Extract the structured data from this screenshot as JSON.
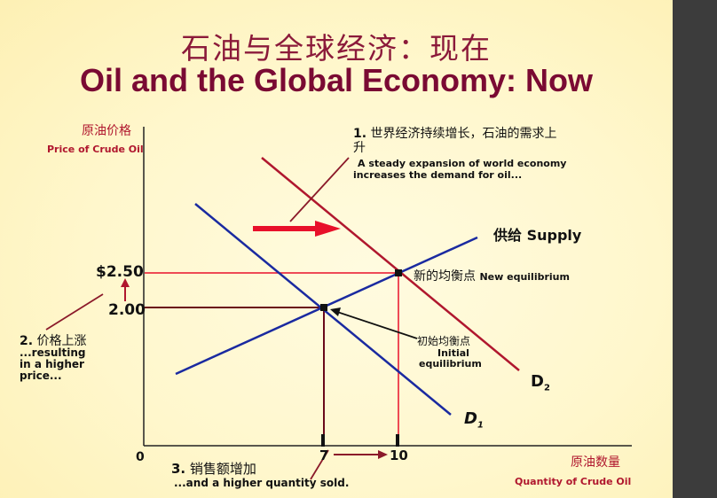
{
  "slide": {
    "title_cn": "石油与全球经济：现在",
    "title_en": "Oil and the Global Economy: Now"
  },
  "axes": {
    "y_label_cn": "原油价格",
    "y_label_en": "Price of Crude Oil",
    "x_label_cn": "原油数量",
    "x_label_en": "Quantity of Crude Oil",
    "origin": "0",
    "price_new": "$2.50",
    "price_old": "2.00",
    "qty_old": "7",
    "qty_new": "10"
  },
  "curves": {
    "supply_label": "供给 Supply",
    "demand1_main": "D",
    "demand1_sub": "1",
    "demand2_main": "D",
    "demand2_sub": "2"
  },
  "equilibria": {
    "new_cn": "新的均衡点",
    "new_en": "New equilibrium",
    "initial_cn": "初始均衡点",
    "initial_en_1": "Initial",
    "initial_en_2": "equilibrium"
  },
  "notes": {
    "note1_num": "1.",
    "note1_cn_line1": "世界经济持续增长，石油的需求上",
    "note1_cn_line2": "升",
    "note1_en_line1": "A steady expansion of world economy",
    "note1_en_line2": "increases the demand for oil...",
    "note2_num": "2.",
    "note2_cn": "价格上涨",
    "note2_en_1": "...resulting",
    "note2_en_2": "in a higher",
    "note2_en_3": "price...",
    "note3_num": "3.",
    "note3_cn": "销售额增加",
    "note3_en": "...and a higher quantity sold."
  },
  "colors": {
    "title": "#7a0a33",
    "demand_shift": "#b0172e",
    "supply": "#1a2aa0",
    "arrow": "#e8102a",
    "guide_lines": "#e8102a",
    "dark_guides": "#6a0a1a"
  }
}
